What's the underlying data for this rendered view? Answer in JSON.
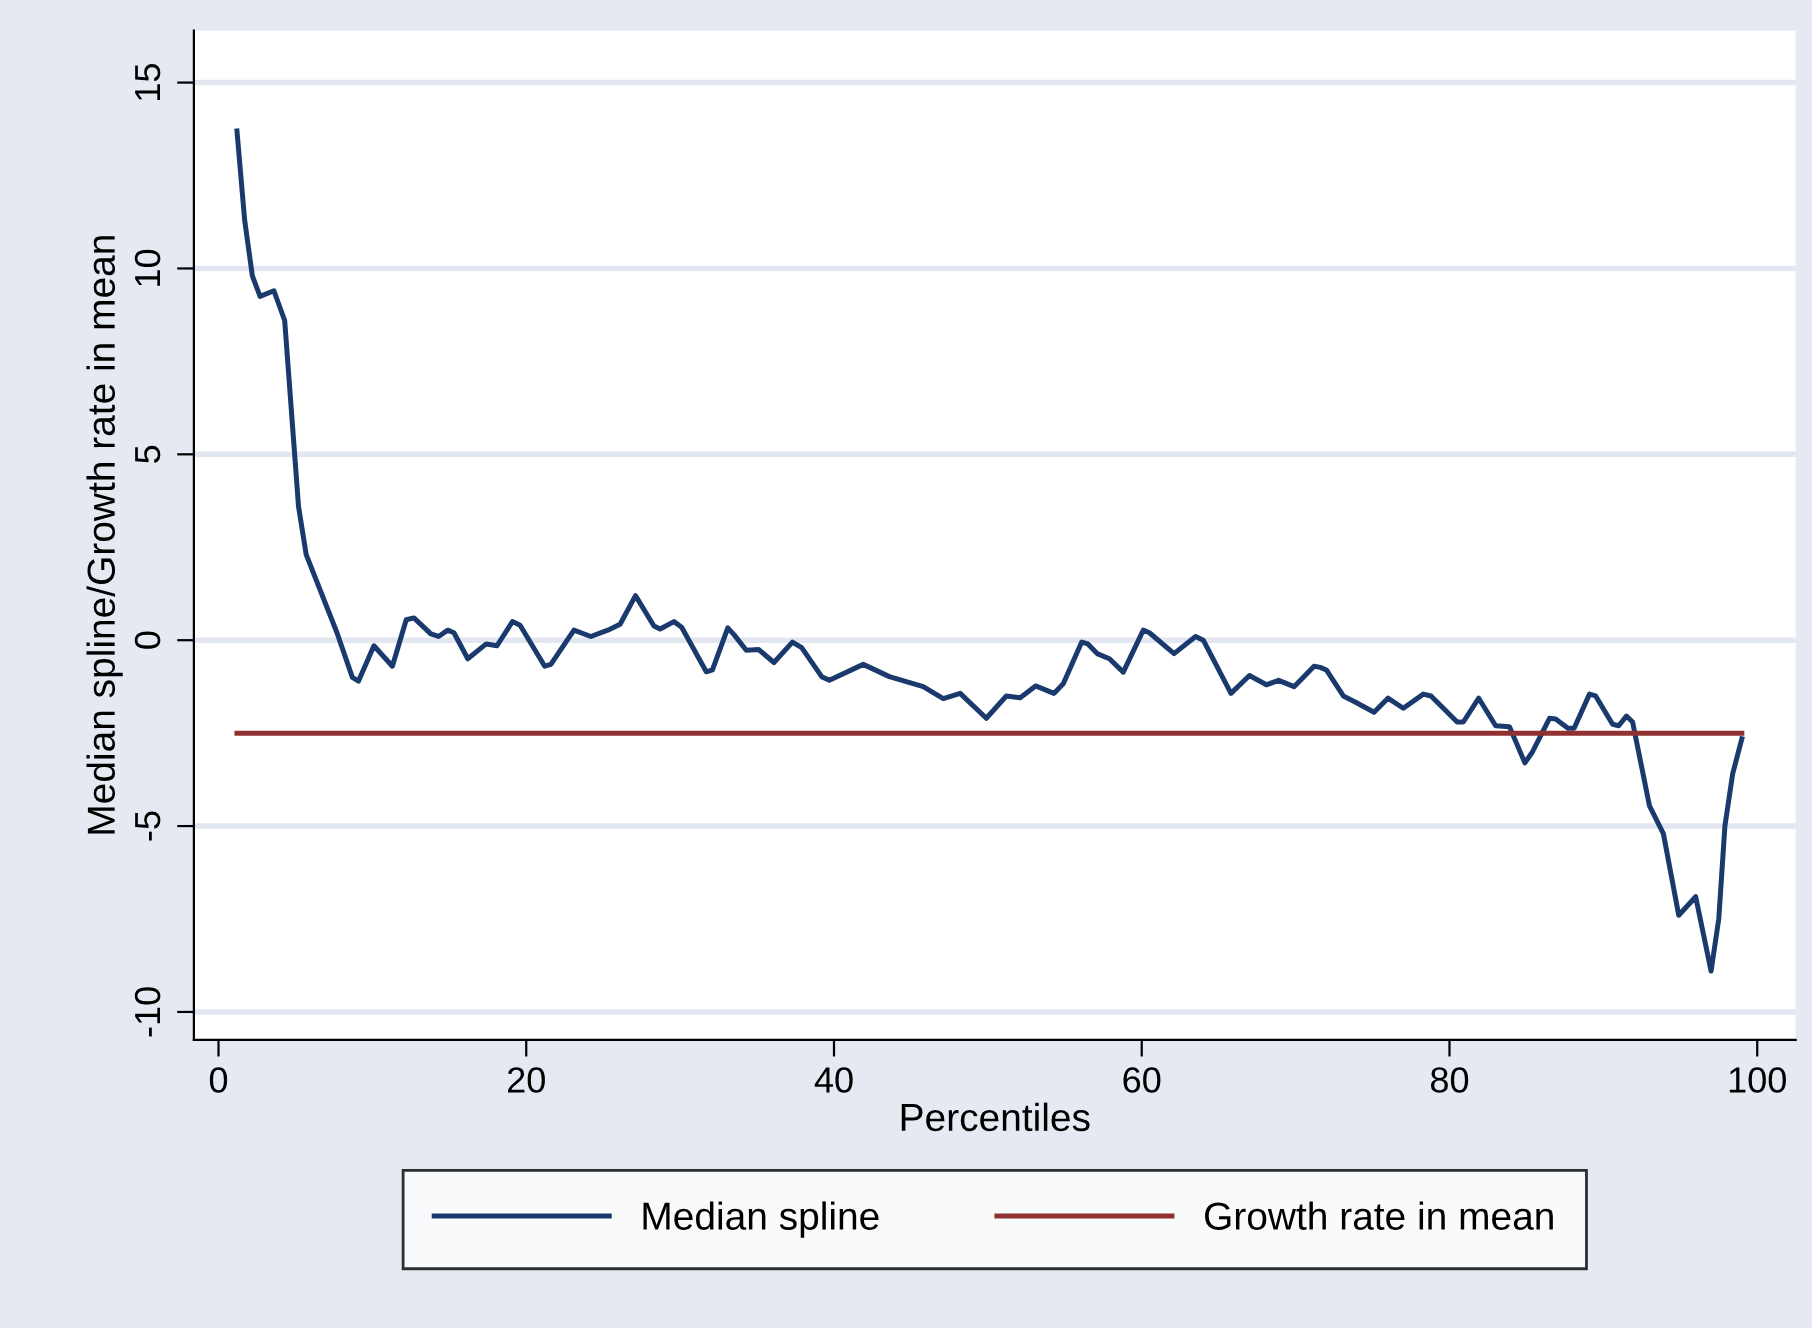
{
  "chart_data": {
    "type": "line",
    "xlabel": "Percentiles",
    "ylabel": "Median spline/Growth rate in mean",
    "xlim": [
      -1.6,
      102.5
    ],
    "ylim": [
      -10.75,
      16.4
    ],
    "xticks": [
      0,
      20,
      40,
      60,
      80,
      100
    ],
    "yticks": [
      -10,
      -5,
      0,
      5,
      10,
      15
    ],
    "grid": "y",
    "legend": "bottom",
    "marker": "none",
    "line_style": "solid",
    "series": [
      {
        "name": "Median spline",
        "color": "#1a3a6e",
        "x": [
          1.2,
          1.7,
          2.2,
          2.7,
          3.6,
          4.3,
          5.2,
          5.7,
          7.7,
          8.7,
          9.1,
          10.1,
          11.3,
          12.2,
          12.7,
          13.8,
          14.3,
          14.9,
          15.3,
          16.2,
          17.4,
          18.1,
          19.1,
          19.6,
          21.2,
          21.6,
          23.1,
          24.2,
          25.3,
          26.1,
          27.1,
          28.3,
          28.7,
          29.6,
          30.1,
          31.7,
          32.1,
          33.1,
          33.5,
          34.3,
          35.1,
          36.1,
          37.3,
          37.9,
          39.2,
          39.7,
          41.9,
          43.6,
          45.8,
          47.1,
          48.2,
          49.9,
          51.2,
          52.1,
          53.1,
          54.3,
          54.9,
          56.1,
          56.5,
          57.1,
          57.9,
          58.8,
          60.1,
          60.5,
          62.1,
          63.5,
          64.0,
          65.8,
          67.0,
          68.1,
          68.9,
          69.9,
          71.2,
          71.6,
          72.0,
          73.1,
          73.9,
          75.1,
          76.0,
          77.0,
          78.3,
          78.8,
          80.5,
          80.9,
          81.9,
          83.0,
          83.9,
          84.9,
          85.4,
          86.5,
          86.9,
          87.7,
          88.1,
          89.1,
          89.5,
          90.6,
          91.0,
          91.5,
          91.9,
          93.0,
          93.9,
          94.9,
          96.0,
          97.0,
          97.5,
          97.9,
          98.4,
          99.0
        ],
        "values": [
          13.7,
          11.3,
          9.8,
          9.25,
          9.4,
          8.6,
          3.6,
          2.3,
          0.2,
          -1.0,
          -1.1,
          -0.15,
          -0.7,
          0.55,
          0.6,
          0.17,
          0.1,
          0.27,
          0.2,
          -0.5,
          -0.1,
          -0.15,
          0.5,
          0.4,
          -0.7,
          -0.65,
          0.27,
          0.1,
          0.27,
          0.43,
          1.2,
          0.38,
          0.3,
          0.5,
          0.35,
          -0.85,
          -0.8,
          0.33,
          0.15,
          -0.27,
          -0.25,
          -0.6,
          -0.05,
          -0.2,
          -0.98,
          -1.08,
          -0.65,
          -0.98,
          -1.25,
          -1.57,
          -1.43,
          -2.1,
          -1.5,
          -1.55,
          -1.23,
          -1.43,
          -1.17,
          -0.05,
          -0.1,
          -0.36,
          -0.5,
          -0.86,
          0.27,
          0.2,
          -0.36,
          0.1,
          0.0,
          -1.43,
          -0.95,
          -1.2,
          -1.08,
          -1.25,
          -0.7,
          -0.73,
          -0.8,
          -1.5,
          -1.67,
          -1.94,
          -1.56,
          -1.83,
          -1.45,
          -1.5,
          -2.2,
          -2.2,
          -1.56,
          -2.3,
          -2.33,
          -3.3,
          -3.0,
          -2.1,
          -2.12,
          -2.37,
          -2.37,
          -1.45,
          -1.5,
          -2.26,
          -2.3,
          -2.04,
          -2.2,
          -4.46,
          -5.2,
          -7.4,
          -6.9,
          -8.9,
          -7.5,
          -5.0,
          -3.6,
          -2.65
        ]
      },
      {
        "name": "Growth rate in mean",
        "color": "#903030",
        "x": [
          1.2,
          99.0
        ],
        "values": [
          -2.5,
          -2.5
        ]
      }
    ]
  }
}
